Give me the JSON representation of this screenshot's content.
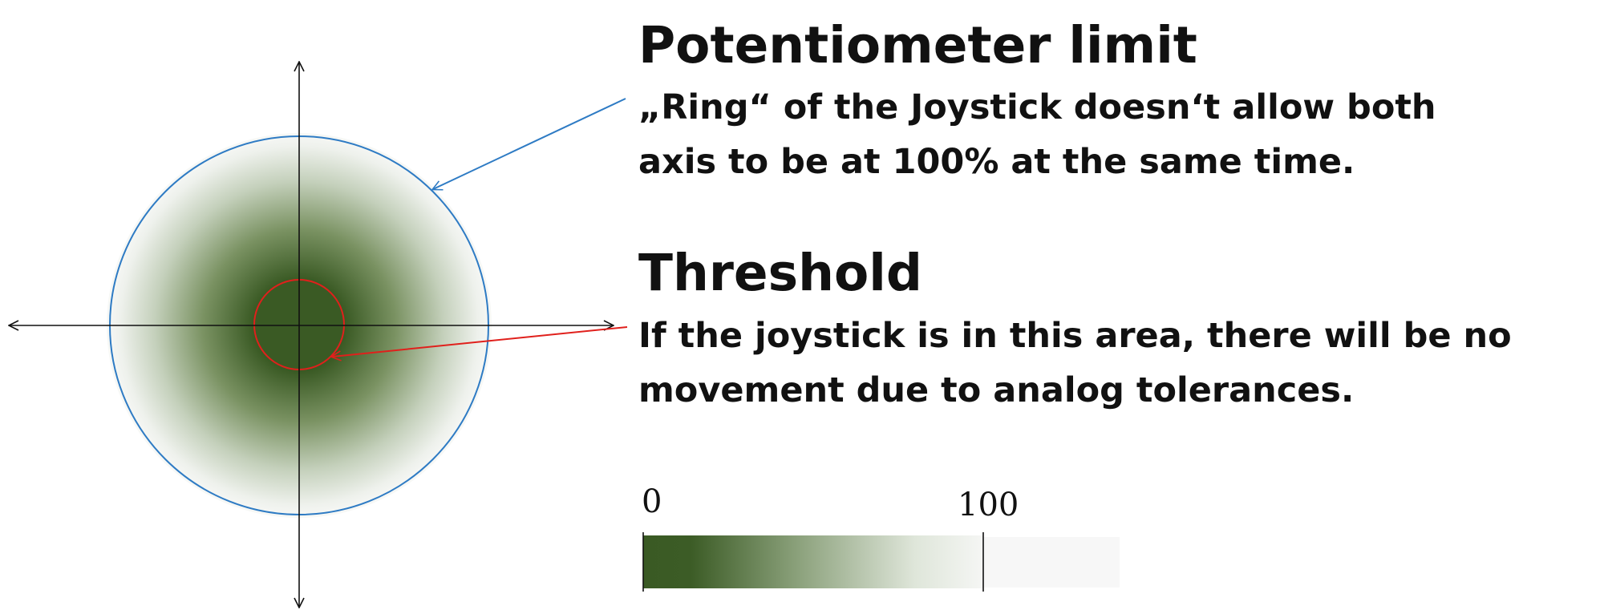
{
  "potentiometer_limit": {
    "title": "Potentiometer limit",
    "description_lines": [
      "„Ring“ of the Joystick doesn‘t allow both",
      "axis to be at 100% at the same time."
    ]
  },
  "threshold": {
    "title": "Threshold",
    "description_lines": [
      "If the joystick is in this area, there will be no",
      "movement due to analog tolerances."
    ]
  },
  "scale": {
    "min_label": "0",
    "max_label": "100"
  },
  "colors": {
    "dark_green": "#3a5a24",
    "limit_ring": "#2e7bc4",
    "threshold_ring": "#e0201c",
    "axis": "#111111"
  }
}
